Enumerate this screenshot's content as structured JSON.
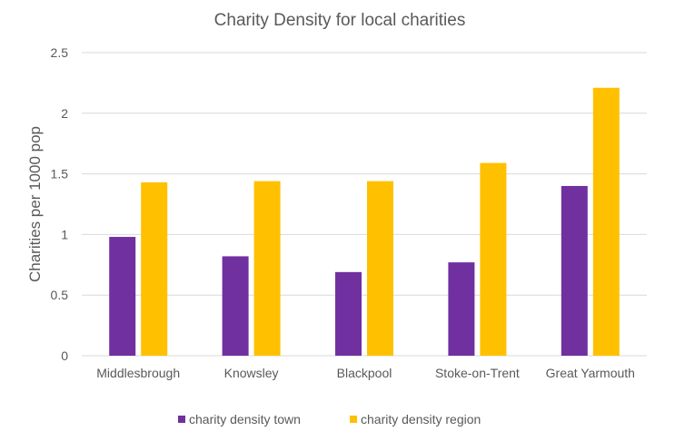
{
  "chart_data": {
    "type": "bar",
    "title": "Charity Density for local charities",
    "xlabel": "",
    "ylabel": "Charities per 1000 pop",
    "ylim": [
      0,
      2.5
    ],
    "yticks": [
      "0",
      "0.5",
      "1",
      "1.5",
      "2",
      "2.5"
    ],
    "grid": true,
    "legend_position": "bottom",
    "categories": [
      "Middlesbrough",
      "Knowsley",
      "Blackpool",
      "Stoke-on-Trent",
      "Great Yarmouth"
    ],
    "series": [
      {
        "name": "charity density town",
        "color": "#7030A0",
        "values": [
          0.98,
          0.82,
          0.69,
          0.77,
          1.4
        ]
      },
      {
        "name": "charity density region",
        "color": "#FFC000",
        "values": [
          1.43,
          1.44,
          1.44,
          1.59,
          2.21
        ]
      }
    ]
  }
}
